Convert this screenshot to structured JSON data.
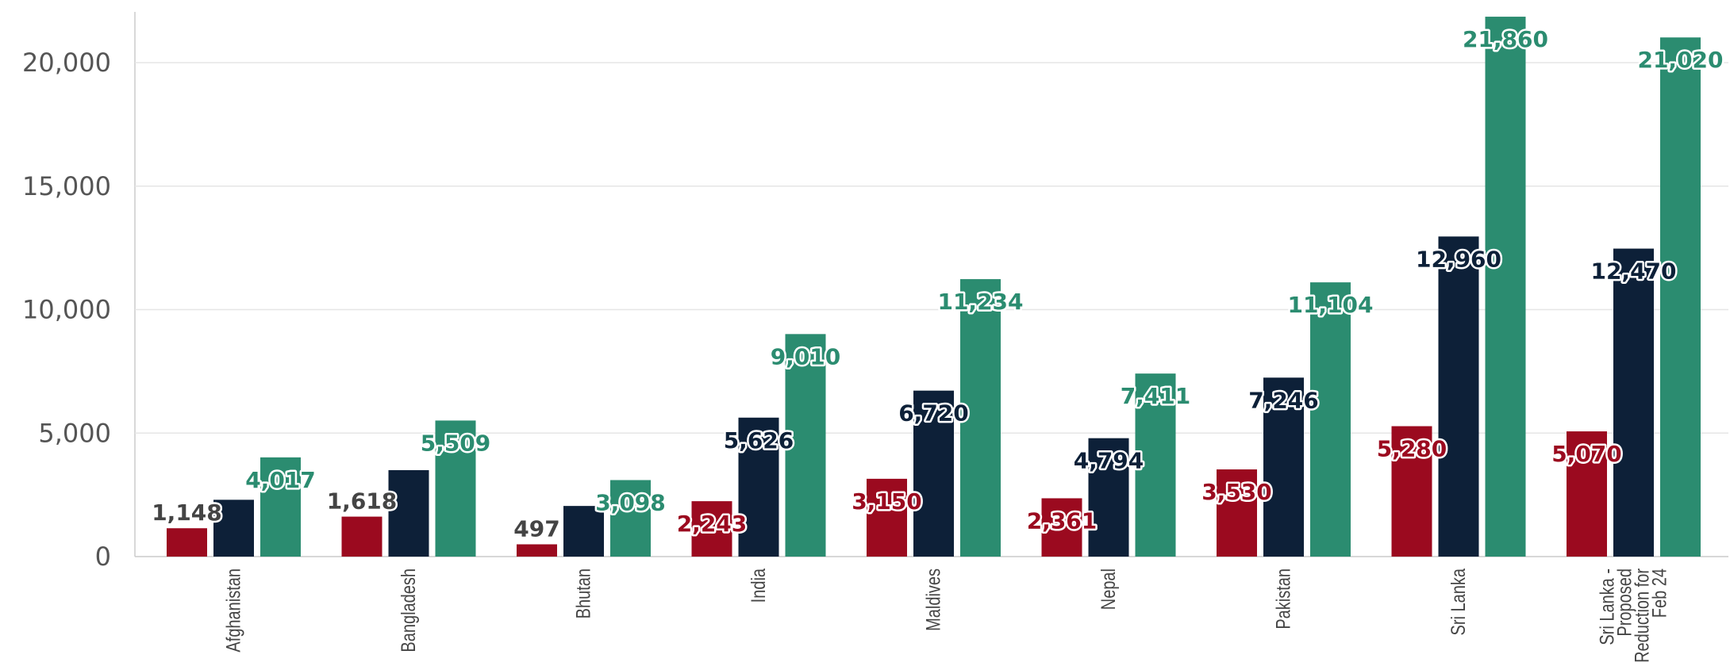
{
  "chart_data": {
    "type": "bar",
    "categories": [
      [
        "Afghanistan"
      ],
      [
        "Bangladesh"
      ],
      [
        "Bhutan"
      ],
      [
        "India"
      ],
      [
        "Maldives"
      ],
      [
        "Nepal"
      ],
      [
        "Pakistan"
      ],
      [
        "Sri Lanka"
      ],
      [
        "Sri Lanka -",
        "Proposed",
        "Reduction for",
        "Feb 24"
      ]
    ],
    "series": [
      {
        "color": "#9b0a1f",
        "label_color": "#9b0a1f",
        "values": [
          1148,
          1618,
          497,
          2243,
          3150,
          2361,
          3530,
          5280,
          5070
        ]
      },
      {
        "color": "#0d2038",
        "label_color": "#0d2038",
        "values": [
          2300,
          3500,
          2050,
          5626,
          6720,
          4794,
          7246,
          12960,
          12470
        ],
        "labels_shown": [
          false,
          false,
          false,
          true,
          true,
          true,
          true,
          true,
          true
        ]
      },
      {
        "color": "#2b8c70",
        "label_color": "#2b8c70",
        "values": [
          4017,
          5509,
          3098,
          9010,
          11234,
          7411,
          11104,
          21860,
          21020
        ]
      }
    ],
    "first_series_dark_labels": [
      true,
      true,
      true,
      false,
      false,
      false,
      false,
      false,
      false
    ],
    "dark_label_color": "#444444",
    "yticks": [
      {
        "value": 0,
        "label": "0"
      },
      {
        "value": 5000,
        "label": "5,000"
      },
      {
        "value": 10000,
        "label": "10,000"
      },
      {
        "value": 15000,
        "label": "15,000"
      },
      {
        "value": 20000,
        "label": "20,000"
      }
    ],
    "ylim": [
      0,
      22000
    ],
    "grid": true,
    "grid_color": "#e6e6e6",
    "axis_color": "#cccccc",
    "legend": "none",
    "title": "",
    "xlabel": "",
    "ylabel": ""
  }
}
